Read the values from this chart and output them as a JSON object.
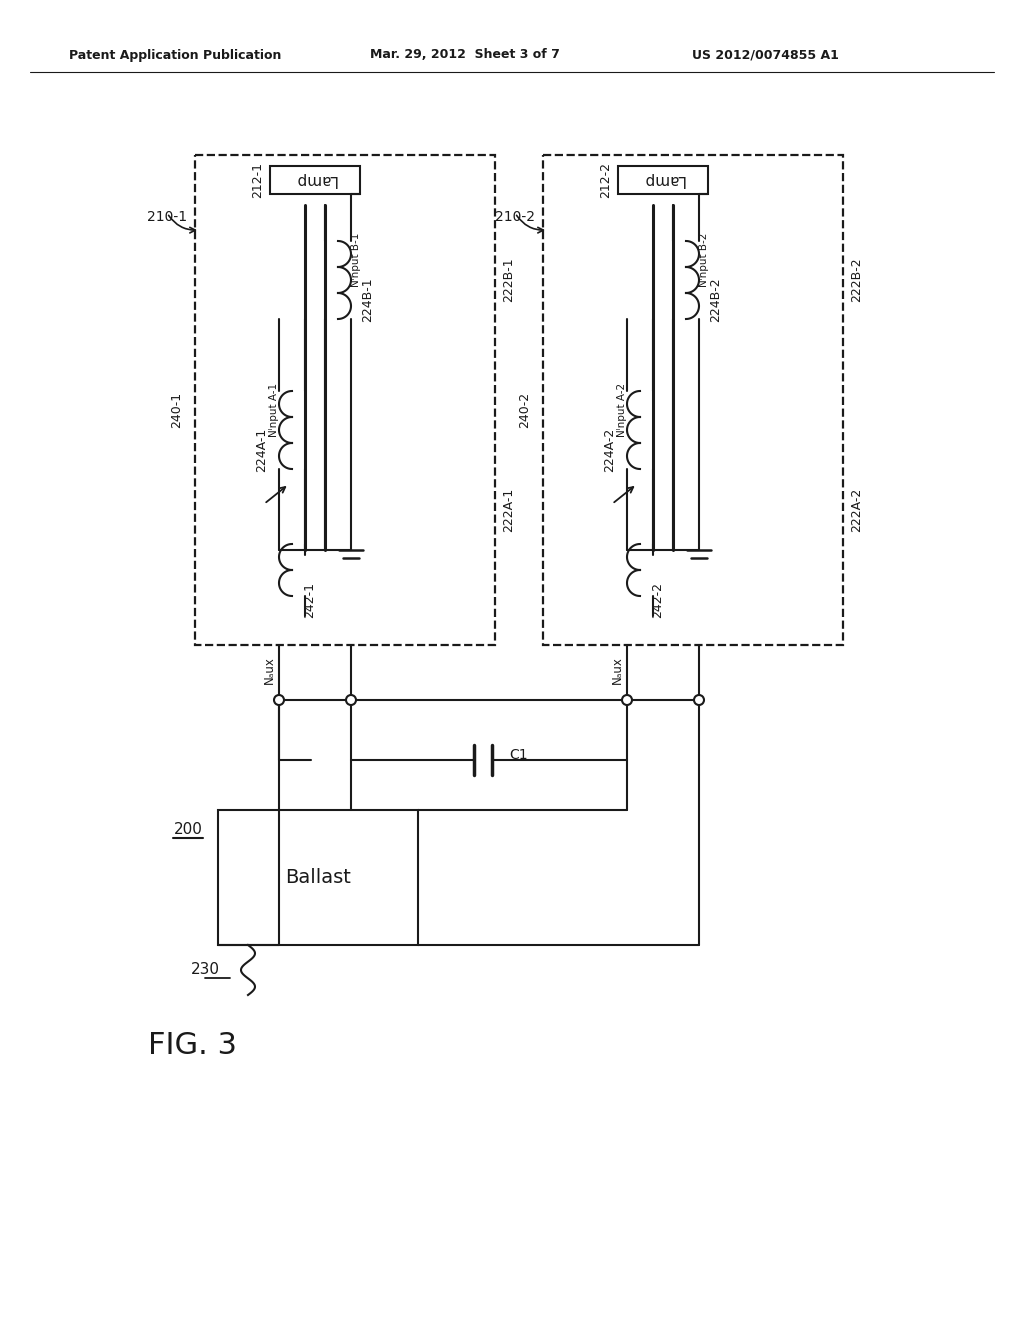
{
  "header_left": "Patent Application Publication",
  "header_mid": "Mar. 29, 2012  Sheet 3 of 7",
  "header_right": "US 2012/0074855 A1",
  "fig_label": "FIG. 3",
  "bg": "#ffffff",
  "lc": "#1a1a1a",
  "box1_label": "210-1",
  "box2_label": "210-2",
  "lamp_text": "Lamp",
  "label_212_1": "212-1",
  "label_212_2": "212-2",
  "label_222B_1": "222B-1",
  "label_222B_2": "222B-2",
  "label_224B_1": "224B-1",
  "label_224B_2": "224B-2",
  "label_NinB_1": "Nᴵnput B-1",
  "label_NinB_2": "Nᴵnput B-2",
  "label_224A_1": "224A-1",
  "label_224A_2": "224A-2",
  "label_NinA_1": "Nᴵnput A-1",
  "label_NinA_2": "Nᴵnput A-2",
  "label_222A_1": "222A-1",
  "label_222A_2": "222A-2",
  "label_240_1": "240-1",
  "label_240_2": "240-2",
  "label_242_1": "242-1",
  "label_242_2": "242-2",
  "label_Naux_1": "Nₐux",
  "label_Naux_2": "Nₐux",
  "label_C1": "C1",
  "label_200": "200",
  "label_230": "230",
  "label_ballast": "Ballast"
}
